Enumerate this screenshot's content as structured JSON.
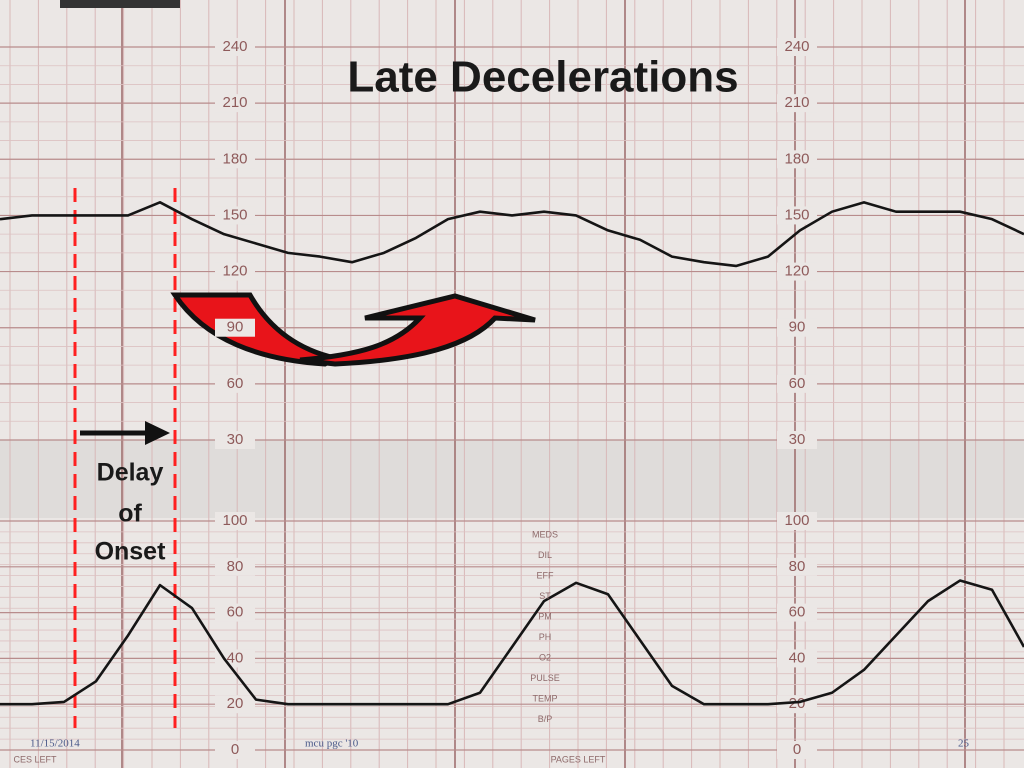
{
  "chart_data": [
    {
      "type": "line",
      "title": "Late Decelerations",
      "categories": [
        null,
        null,
        null,
        null,
        null,
        null,
        null,
        null,
        null,
        null,
        null,
        null,
        null,
        null,
        null,
        null,
        null,
        null,
        null,
        null,
        null,
        null,
        null,
        null,
        null,
        null,
        null,
        null,
        null,
        null,
        null,
        null,
        null
      ],
      "series": [
        {
          "color": "#151515",
          "values": [
            148,
            150,
            150,
            150,
            150,
            157,
            148,
            140,
            135,
            130,
            128,
            125,
            130,
            138,
            148,
            152,
            150,
            152,
            150,
            142,
            137,
            128,
            125,
            123,
            128,
            142,
            152,
            157,
            152,
            152,
            152,
            148,
            140
          ]
        }
      ],
      "ylim": [
        30,
        240
      ],
      "yticks": [
        30,
        60,
        90,
        120,
        150,
        180,
        210,
        240
      ],
      "grid": true
    },
    {
      "type": "line",
      "categories": [
        null,
        null,
        null,
        null,
        null,
        null,
        null,
        null,
        null,
        null,
        null,
        null,
        null,
        null,
        null,
        null,
        null,
        null,
        null,
        null,
        null,
        null,
        null,
        null,
        null,
        null,
        null,
        null,
        null,
        null,
        null,
        null,
        null
      ],
      "series": [
        {
          "color": "#151515",
          "values": [
            20,
            20,
            21,
            30,
            50,
            72,
            62,
            40,
            22,
            20,
            20,
            20,
            20,
            20,
            20,
            25,
            45,
            65,
            73,
            68,
            48,
            28,
            20,
            20,
            20,
            21,
            25,
            35,
            50,
            65,
            74,
            70,
            45
          ]
        }
      ],
      "ylim": [
        0,
        100
      ],
      "yticks": [
        0,
        20,
        40,
        60,
        80,
        100
      ],
      "grid": true
    }
  ],
  "annotation": [
    "Delay",
    "of",
    "Onset"
  ],
  "paper_labels": [
    "MEDS",
    "DIL",
    "EFF",
    "ST",
    "PM",
    "PH",
    "O2",
    "PULSE",
    "TEMP",
    "B/P"
  ],
  "paper_footer": [
    "CES LEFT",
    "PAGES LEFT"
  ],
  "footer": {
    "date": "11/15/2014",
    "source": "mcu pgc '10",
    "page": "25"
  }
}
